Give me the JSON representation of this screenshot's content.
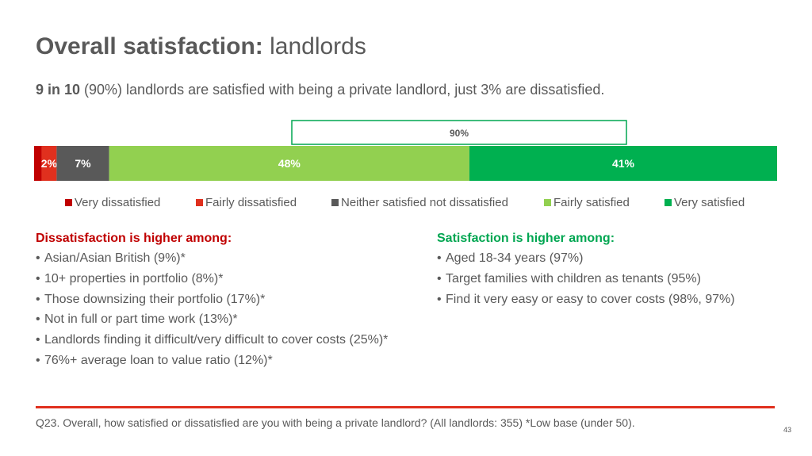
{
  "header": {
    "title_bold": "Overall satisfaction:",
    "title_rest": " landlords",
    "subtitle_bold": "9 in 10",
    "subtitle_rest": " (90%) landlords are satisfied with being a private landlord, just 3% are dissatisfied."
  },
  "chart_data": {
    "type": "bar",
    "orientation": "horizontal-stacked",
    "categories": [
      "Very dissatisfied",
      "Fairly dissatisfied",
      "Neither satisfied not dissatisfied",
      "Fairly satisfied",
      "Very satisfied"
    ],
    "values": [
      1,
      2,
      7,
      48,
      41
    ],
    "labels": [
      "",
      "2%",
      "7%",
      "48%",
      "41%"
    ],
    "colors": [
      "#c00000",
      "#e0301e",
      "#595959",
      "#92d050",
      "#00b050"
    ],
    "bracket": {
      "label": "90%",
      "spans": [
        "Fairly satisfied",
        "Very satisfied"
      ],
      "color": "#00a651"
    },
    "legend_position": "bottom"
  },
  "dissatisfaction": {
    "heading": "Dissatisfaction is higher among:",
    "items": [
      "Asian/Asian British (9%)*",
      "10+ properties in portfolio (8%)*",
      "Those downsizing their portfolio (17%)*",
      "Not in full or part time work (13%)*",
      "Landlords finding it difficult/very difficult to cover costs (25%)*",
      "76%+ average loan to value ratio (12%)*"
    ]
  },
  "satisfaction": {
    "heading": "Satisfaction is higher among:",
    "items": [
      "Aged 18-34 years (97%)",
      "Target families with children as tenants (95%)",
      "Find it very easy or easy to cover costs (98%, 97%)"
    ]
  },
  "bullet_char": "•",
  "footnote": "Q23. Overall, how satisfied or dissatisfied are you with being a private landlord? (All landlords: 355) *Low base (under 50).",
  "page_number": "43"
}
